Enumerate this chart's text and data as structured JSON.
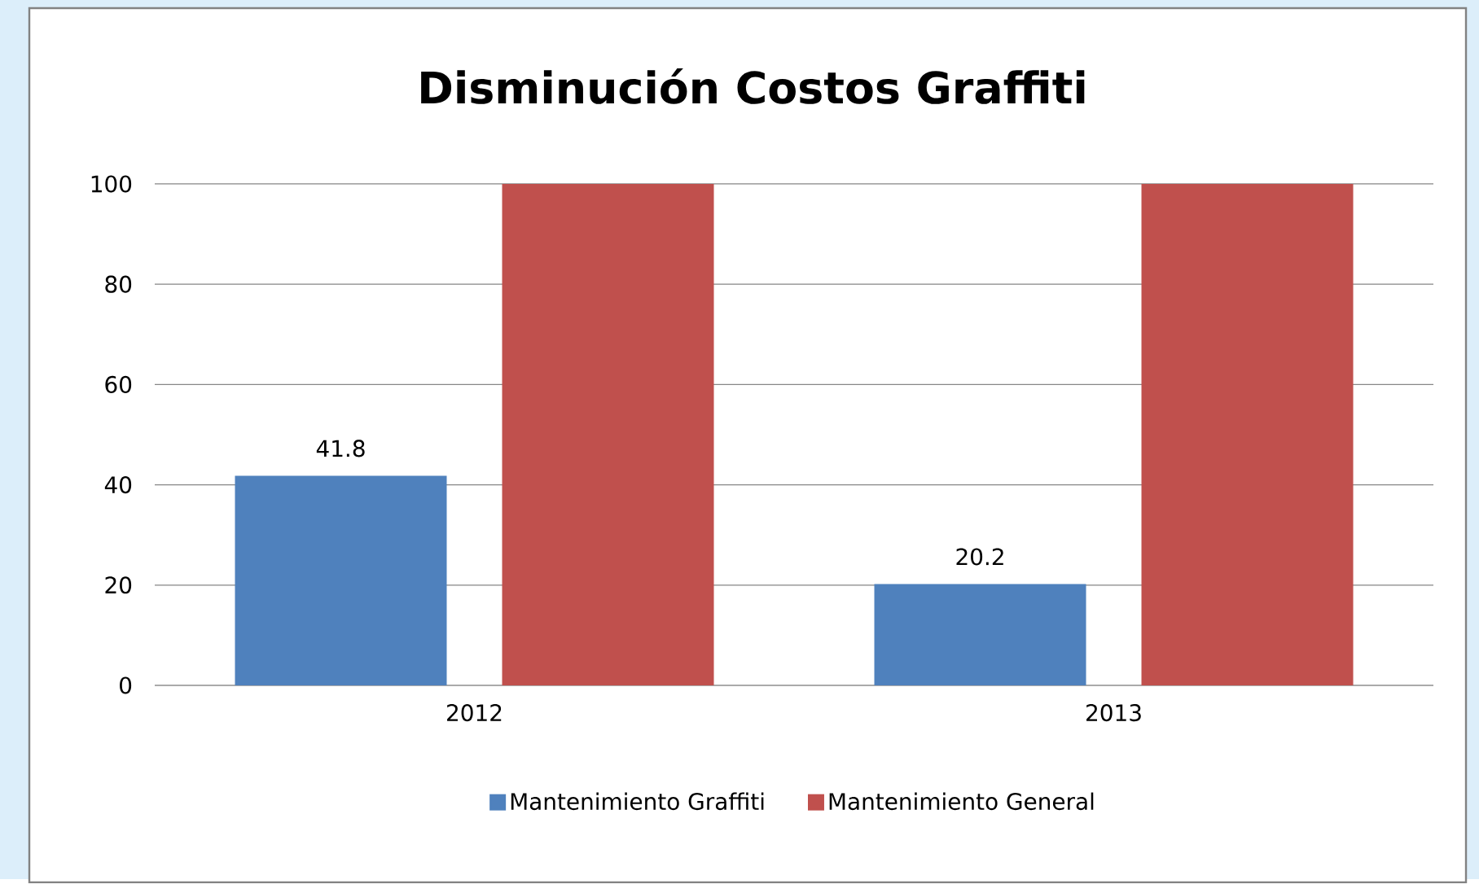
{
  "chart_data": {
    "type": "bar",
    "title": "Disminución Costos Graffiti",
    "categories": [
      "2012",
      "2013"
    ],
    "series": [
      {
        "name": "Mantenimiento Graffiti",
        "color": "#4f81bd",
        "values": [
          41.8,
          20.2
        ],
        "value_labels": [
          "41.8",
          "20.2"
        ]
      },
      {
        "name": "Mantenimiento General",
        "color": "#c0504d",
        "values": [
          100,
          100
        ]
      }
    ],
    "ylim": [
      0,
      100
    ],
    "yticks": [
      0,
      20,
      40,
      60,
      80,
      100
    ],
    "grid": "y",
    "legend": "bottom"
  }
}
